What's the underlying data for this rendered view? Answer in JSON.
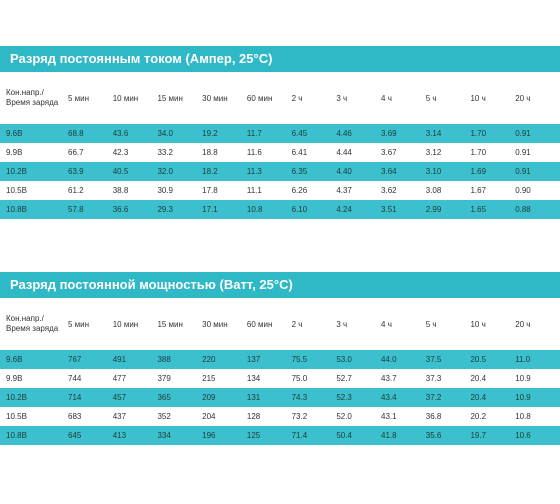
{
  "colors": {
    "banner": "#2fb8c6",
    "stripe": "#3cc0cd"
  },
  "tables": [
    {
      "title": "Разряд постоянным током (Ампер, 25°C)",
      "header_line1": "Кон.напр./",
      "header_line2": "Время заряда",
      "columns": [
        "5 мин",
        "10 мин",
        "15 мин",
        "30 мин",
        "60 мин",
        "2 ч",
        "3 ч",
        "4 ч",
        "5 ч",
        "10 ч",
        "20 ч"
      ],
      "rows": [
        {
          "label": "9.6В",
          "values": [
            "68.8",
            "43.6",
            "34.0",
            "19.2",
            "11.7",
            "6.45",
            "4.46",
            "3.69",
            "3.14",
            "1.70",
            "0.91"
          ]
        },
        {
          "label": "9.9В",
          "values": [
            "66.7",
            "42.3",
            "33.2",
            "18.8",
            "11.6",
            "6.41",
            "4.44",
            "3.67",
            "3.12",
            "1.70",
            "0.91"
          ]
        },
        {
          "label": "10.2В",
          "values": [
            "63.9",
            "40.5",
            "32.0",
            "18.2",
            "11.3",
            "6.35",
            "4.40",
            "3.64",
            "3.10",
            "1.69",
            "0.91"
          ]
        },
        {
          "label": "10.5В",
          "values": [
            "61.2",
            "38.8",
            "30.9",
            "17.8",
            "11.1",
            "6.26",
            "4.37",
            "3.62",
            "3.08",
            "1.67",
            "0.90"
          ]
        },
        {
          "label": "10.8В",
          "values": [
            "57.8",
            "36.6",
            "29.3",
            "17.1",
            "10.8",
            "6.10",
            "4.24",
            "3.51",
            "2.99",
            "1.65",
            "0.88"
          ]
        }
      ]
    },
    {
      "title": "Разряд постоянной мощностью (Ватт, 25°C)",
      "header_line1": "Кон.напр./",
      "header_line2": "Время заряда",
      "columns": [
        "5 мин",
        "10 мин",
        "15 мин",
        "30 мин",
        "60 мин",
        "2 ч",
        "3 ч",
        "4 ч",
        "5 ч",
        "10 ч",
        "20 ч"
      ],
      "rows": [
        {
          "label": "9.6В",
          "values": [
            "767",
            "491",
            "388",
            "220",
            "137",
            "75.5",
            "53.0",
            "44.0",
            "37.5",
            "20.5",
            "11.0"
          ]
        },
        {
          "label": "9.9В",
          "values": [
            "744",
            "477",
            "379",
            "215",
            "134",
            "75.0",
            "52.7",
            "43.7",
            "37.3",
            "20.4",
            "10.9"
          ]
        },
        {
          "label": "10.2В",
          "values": [
            "714",
            "457",
            "365",
            "209",
            "131",
            "74.3",
            "52.3",
            "43.4",
            "37.2",
            "20.4",
            "10.9"
          ]
        },
        {
          "label": "10.5В",
          "values": [
            "683",
            "437",
            "352",
            "204",
            "128",
            "73.2",
            "52.0",
            "43.1",
            "36.8",
            "20.2",
            "10.8"
          ]
        },
        {
          "label": "10.8В",
          "values": [
            "645",
            "413",
            "334",
            "196",
            "125",
            "71.4",
            "50.4",
            "41.8",
            "35.6",
            "19.7",
            "10.6"
          ]
        }
      ]
    }
  ]
}
